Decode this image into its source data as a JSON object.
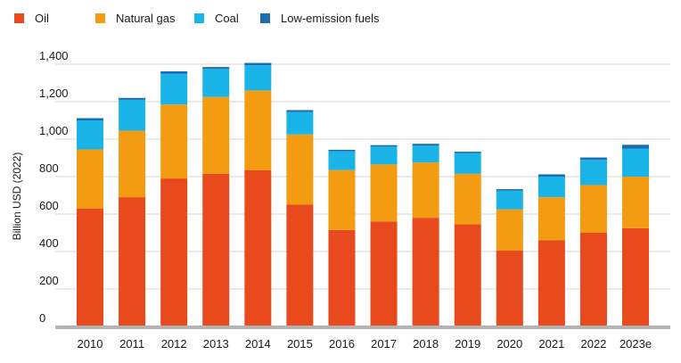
{
  "chart_data": {
    "type": "bar",
    "stacked": true,
    "categories": [
      "2010",
      "2011",
      "2012",
      "2013",
      "2014",
      "2015",
      "2016",
      "2017",
      "2018",
      "2019",
      "2020",
      "2021",
      "2022",
      "2023e"
    ],
    "series": [
      {
        "name": "Oil",
        "color": "#e8491d",
        "values": [
          630,
          690,
          790,
          815,
          835,
          650,
          515,
          560,
          580,
          545,
          405,
          460,
          500,
          525
        ]
      },
      {
        "name": "Natural gas",
        "color": "#f39c12",
        "values": [
          315,
          355,
          395,
          410,
          425,
          375,
          320,
          305,
          295,
          270,
          220,
          230,
          255,
          275
        ]
      },
      {
        "name": "Coal",
        "color": "#1ab4e8",
        "values": [
          155,
          165,
          165,
          150,
          135,
          120,
          100,
          95,
          90,
          110,
          100,
          110,
          135,
          150
        ]
      },
      {
        "name": "Low-emission fuels",
        "color": "#1c6db0",
        "values": [
          12,
          10,
          12,
          10,
          12,
          10,
          8,
          8,
          10,
          8,
          8,
          12,
          12,
          20
        ]
      }
    ],
    "ylabel": "Billion USD (2022)",
    "xlabel": "",
    "ylim": [
      0,
      1400
    ],
    "yticks": [
      0,
      200,
      400,
      600,
      800,
      1000,
      1200,
      1400
    ],
    "ytick_labels": [
      "0",
      "200",
      "400",
      "600",
      "800",
      "1,000",
      "1,200",
      "1,400"
    ],
    "grid": true,
    "legend_position": "top-left"
  }
}
